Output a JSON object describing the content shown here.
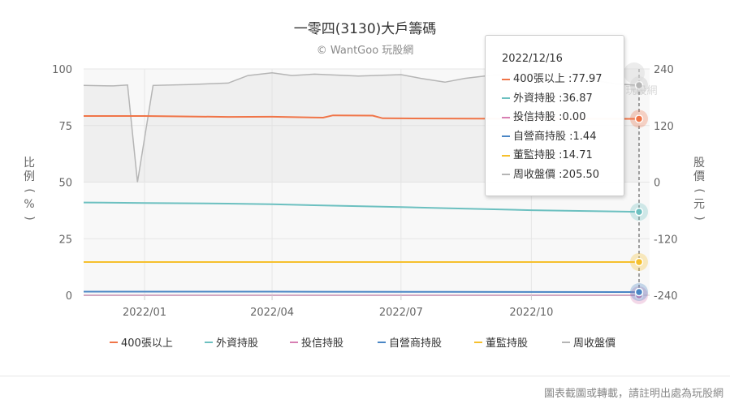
{
  "title": "一零四(3130)大戶籌碼",
  "subtitle": "© WantGoo 玩股網",
  "footer_note": "圖表截圖或轉載，請註明出處為玩股網",
  "watermark_text": "玩股網",
  "chart_data": {
    "type": "line",
    "x_range": [
      "2021-11-19",
      "2022-12-16"
    ],
    "x_ticks": [
      {
        "label": "2022/01",
        "date": "2022-01-01"
      },
      {
        "label": "2022/04",
        "date": "2022-04-01"
      },
      {
        "label": "2022/07",
        "date": "2022-07-01"
      },
      {
        "label": "2022/10",
        "date": "2022-10-01"
      }
    ],
    "y_left": {
      "label": "比例 (%)",
      "lim": [
        0,
        100
      ],
      "ticks": [
        0,
        25,
        50,
        75,
        100
      ]
    },
    "y_right": {
      "label": "股價 (元)",
      "lim": [
        -240,
        240
      ],
      "ticks": [
        -240,
        -120,
        0,
        120,
        240
      ]
    },
    "grid": true,
    "legend_position": "bottom",
    "series": [
      {
        "name": "400張以上",
        "color": "#f07548",
        "axis": "left",
        "type": "line",
        "points": [
          [
            "2021-11-19",
            79.2
          ],
          [
            "2022-01-01",
            79.2
          ],
          [
            "2022-03-01",
            78.8
          ],
          [
            "2022-04-01",
            78.9
          ],
          [
            "2022-05-07",
            78.5
          ],
          [
            "2022-05-14",
            79.5
          ],
          [
            "2022-06-11",
            79.4
          ],
          [
            "2022-06-18",
            78.2
          ],
          [
            "2022-08-01",
            78.1
          ],
          [
            "2022-10-01",
            78.0
          ],
          [
            "2022-12-16",
            77.97
          ]
        ]
      },
      {
        "name": "外資持股",
        "color": "#6cc0c0",
        "axis": "left",
        "type": "line",
        "points": [
          [
            "2021-11-19",
            41.0
          ],
          [
            "2022-01-01",
            40.8
          ],
          [
            "2022-03-01",
            40.5
          ],
          [
            "2022-04-01",
            40.2
          ],
          [
            "2022-05-14",
            39.6
          ],
          [
            "2022-07-01",
            39.0
          ],
          [
            "2022-08-01",
            38.5
          ],
          [
            "2022-10-01",
            37.6
          ],
          [
            "2022-12-16",
            36.87
          ]
        ]
      },
      {
        "name": "投信持股",
        "color": "#d77fb3",
        "axis": "left",
        "type": "line",
        "points": [
          [
            "2021-11-19",
            0.0
          ],
          [
            "2022-12-16",
            0.0
          ]
        ]
      },
      {
        "name": "自營商持股",
        "color": "#4a86c5",
        "axis": "left",
        "type": "line",
        "points": [
          [
            "2021-11-19",
            1.6
          ],
          [
            "2022-04-01",
            1.6
          ],
          [
            "2022-08-01",
            1.5
          ],
          [
            "2022-12-16",
            1.44
          ]
        ]
      },
      {
        "name": "董監持股",
        "color": "#f6c02d",
        "axis": "left",
        "type": "line",
        "points": [
          [
            "2021-11-19",
            14.71
          ],
          [
            "2022-12-16",
            14.71
          ]
        ]
      },
      {
        "name": "周收盤價",
        "color": "#b5b5b5",
        "axis": "right",
        "type": "area",
        "points": [
          [
            "2021-11-19",
            205
          ],
          [
            "2021-12-10",
            204
          ],
          [
            "2021-12-20",
            206
          ],
          [
            "2021-12-27",
            0
          ],
          [
            "2022-01-07",
            205
          ],
          [
            "2022-02-01",
            207
          ],
          [
            "2022-03-01",
            210
          ],
          [
            "2022-03-15",
            226
          ],
          [
            "2022-04-01",
            232
          ],
          [
            "2022-04-15",
            226
          ],
          [
            "2022-05-01",
            229
          ],
          [
            "2022-06-01",
            225
          ],
          [
            "2022-07-01",
            228
          ],
          [
            "2022-07-15",
            220
          ],
          [
            "2022-08-01",
            212
          ],
          [
            "2022-08-15",
            220
          ],
          [
            "2022-09-01",
            226
          ],
          [
            "2022-10-01",
            230
          ],
          [
            "2022-11-01",
            222
          ],
          [
            "2022-12-01",
            208
          ],
          [
            "2022-12-16",
            205.5
          ]
        ]
      }
    ],
    "tooltip": {
      "date": "2022/12/16",
      "rows": [
        {
          "name": "400張以上",
          "value": "77.97",
          "color": "#f07548"
        },
        {
          "name": "外資持股",
          "value": "36.87",
          "color": "#6cc0c0"
        },
        {
          "name": "投信持股",
          "value": "0.00",
          "color": "#d77fb3"
        },
        {
          "name": "自營商持股",
          "value": "1.44",
          "color": "#4a86c5"
        },
        {
          "name": "董監持股",
          "value": "14.71",
          "color": "#f6c02d"
        },
        {
          "name": "周收盤價",
          "value": "205.50",
          "color": "#b5b5b5"
        }
      ]
    }
  }
}
